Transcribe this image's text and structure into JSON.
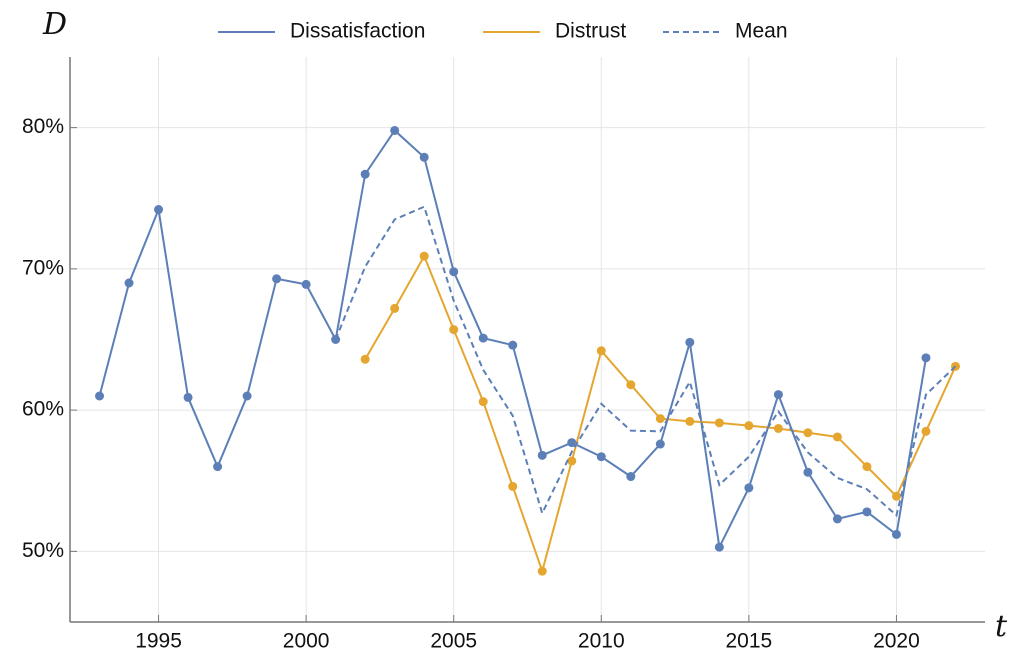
{
  "chart_data": {
    "type": "line",
    "xlabel": "t",
    "ylabel": "D",
    "x": [
      1993,
      1994,
      1995,
      1996,
      1997,
      1998,
      1999,
      2000,
      2001,
      2002,
      2003,
      2004,
      2005,
      2006,
      2007,
      2008,
      2009,
      2010,
      2011,
      2012,
      2013,
      2014,
      2015,
      2016,
      2017,
      2018,
      2019,
      2020,
      2021,
      2022
    ],
    "series": [
      {
        "name": "Dissatisfaction",
        "color": "#5b7fb6",
        "style": "solid",
        "markers": true,
        "values": [
          61.0,
          69.0,
          74.2,
          60.9,
          56.0,
          61.0,
          69.3,
          68.9,
          65.0,
          76.7,
          79.8,
          77.9,
          69.8,
          65.1,
          64.6,
          56.8,
          57.7,
          56.7,
          55.3,
          57.6,
          64.8,
          50.3,
          54.5,
          61.1,
          55.6,
          52.3,
          52.8,
          51.2,
          63.7,
          null
        ]
      },
      {
        "name": "Distrust",
        "color": "#e5a630",
        "style": "solid",
        "markers": true,
        "values": [
          null,
          null,
          null,
          null,
          null,
          null,
          null,
          null,
          null,
          63.6,
          67.2,
          70.9,
          65.7,
          60.6,
          54.6,
          48.6,
          56.4,
          64.2,
          61.8,
          59.4,
          59.2,
          59.1,
          58.9,
          58.7,
          58.4,
          58.1,
          56.0,
          53.9,
          58.5,
          63.1
        ]
      },
      {
        "name": "Mean",
        "color": "#5b7fb6",
        "style": "dashed",
        "markers": false,
        "values": [
          null,
          null,
          null,
          null,
          null,
          null,
          null,
          null,
          65.0,
          70.15,
          73.5,
          74.4,
          67.75,
          62.85,
          59.6,
          52.7,
          57.05,
          60.45,
          58.55,
          58.5,
          62.0,
          54.7,
          56.7,
          59.9,
          57.0,
          55.2,
          54.4,
          52.55,
          61.1,
          63.1
        ]
      }
    ],
    "xlim": [
      1992,
      2023
    ],
    "ylim": [
      45,
      85
    ],
    "xticks": [
      1995,
      2000,
      2005,
      2010,
      2015,
      2020
    ],
    "yticks": [
      {
        "value": 50,
        "label": "50%"
      },
      {
        "value": 60,
        "label": "60%"
      },
      {
        "value": 70,
        "label": "70%"
      },
      {
        "value": 80,
        "label": "80%"
      }
    ],
    "grid": true,
    "legend": "top"
  }
}
